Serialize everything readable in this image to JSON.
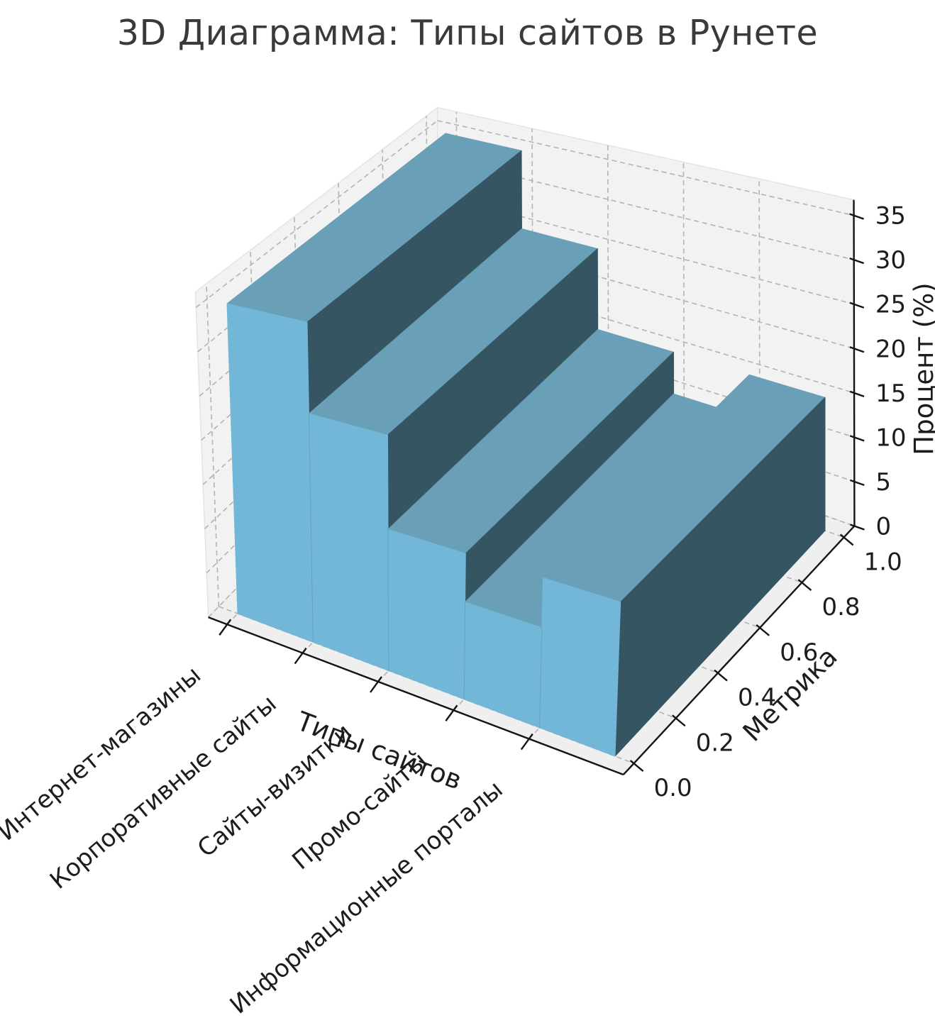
{
  "title": "3D Диаграмма: Типы сайтов в Рунете",
  "chart_data": {
    "type": "bar",
    "projection": "3d",
    "title": "3D Диаграмма: Типы сайтов в Рунете",
    "categories": [
      "Интернет-магазины",
      "Корпоративные сайты",
      "Сайты-визитки",
      "Промо-сайты",
      "Информационные порталы"
    ],
    "values": [
      35,
      25,
      15,
      10,
      15
    ],
    "xlabel": "Типы сайтов",
    "ylabel": "Метрика",
    "zlabel": "Процент (%)",
    "y_ticks": [
      "0.0",
      "0.2",
      "0.4",
      "0.6",
      "0.8",
      "1.0"
    ],
    "z_ticks": [
      0,
      5,
      10,
      15,
      20,
      25,
      30,
      35
    ],
    "xlim": [
      -0.25,
      5.25
    ],
    "ylim": [
      -0.05,
      1.05
    ],
    "zlim": [
      0,
      36.75
    ],
    "grid": "dashed",
    "colors": {
      "bar_front": "#73b7d8",
      "bar_top": "#699fb7",
      "bar_side": "#365563",
      "pane_wall": "#f2f2f2",
      "pane_floor": "#efefef",
      "pane_edge": "#e4e4e4",
      "grid_line": "#b3b3b3",
      "axis_line": "#141414",
      "tick_label": "#1c1c1c",
      "title_text": "#3a3a3a"
    }
  }
}
